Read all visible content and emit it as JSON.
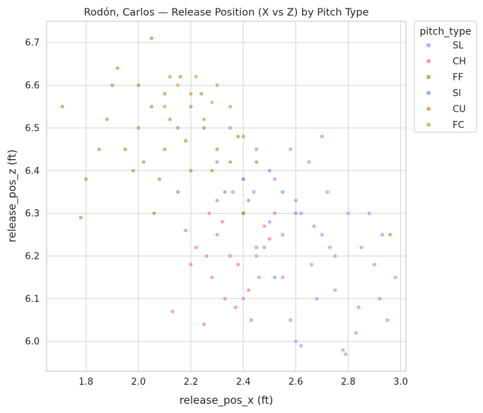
{
  "chart_data": {
    "type": "scatter",
    "title": "Rodón, Carlos — Release Position (X vs Z) by Pitch Type",
    "xlabel": "release_pos_x (ft)",
    "ylabel": "release_pos_z (ft)",
    "xlim": [
      1.65,
      3.02
    ],
    "ylim": [
      5.93,
      6.75
    ],
    "xticks": [
      "1.8",
      "2.0",
      "2.2",
      "2.4",
      "2.6",
      "2.8",
      "3.0"
    ],
    "yticks": [
      "6.0",
      "6.1",
      "6.2",
      "6.3",
      "6.4",
      "6.5",
      "6.6",
      "6.7"
    ],
    "grid": true,
    "legend": {
      "title": "pitch_type",
      "placement": "outside-top-right",
      "entries": [
        "SL",
        "CH",
        "FF",
        "Sl",
        "CU",
        "FC"
      ]
    },
    "series": [
      {
        "name": "SL",
        "color": "#c77cff",
        "points": [
          [
            2.62,
            6.3
          ],
          [
            2.7,
            6.25
          ],
          [
            2.75,
            6.2
          ],
          [
            2.55,
            6.15
          ],
          [
            2.8,
            6.3
          ],
          [
            2.85,
            6.22
          ],
          [
            2.9,
            6.18
          ],
          [
            2.68,
            6.1
          ],
          [
            2.72,
            6.35
          ],
          [
            2.58,
            6.05
          ],
          [
            2.6,
            6.0
          ],
          [
            2.78,
            5.98
          ],
          [
            2.83,
            6.02
          ],
          [
            2.92,
            6.1
          ],
          [
            2.95,
            6.05
          ],
          [
            2.5,
            6.28
          ],
          [
            2.45,
            6.2
          ],
          [
            2.52,
            6.38
          ],
          [
            2.65,
            6.42
          ],
          [
            2.7,
            6.48
          ],
          [
            2.58,
            6.45
          ],
          [
            2.88,
            6.3
          ],
          [
            2.93,
            6.25
          ],
          [
            2.98,
            6.15
          ],
          [
            2.75,
            6.12
          ],
          [
            2.66,
            6.18
          ],
          [
            2.55,
            6.25
          ],
          [
            2.62,
            5.99
          ],
          [
            2.79,
            5.97
          ],
          [
            2.84,
            6.08
          ],
          [
            2.4,
            6.1
          ],
          [
            2.44,
            6.35
          ],
          [
            2.6,
            6.33
          ],
          [
            2.67,
            6.27
          ],
          [
            2.73,
            6.22
          ]
        ]
      },
      {
        "name": "CH",
        "color": "#f0788c",
        "points": [
          [
            2.3,
            6.25
          ],
          [
            2.35,
            6.2
          ],
          [
            2.4,
            6.3
          ],
          [
            2.28,
            6.15
          ],
          [
            2.25,
            6.04
          ],
          [
            2.45,
            6.22
          ],
          [
            2.38,
            6.18
          ],
          [
            2.32,
            6.28
          ],
          [
            2.42,
            6.12
          ],
          [
            2.27,
            6.3
          ],
          [
            2.36,
            6.35
          ],
          [
            2.48,
            6.27
          ],
          [
            2.22,
            6.22
          ],
          [
            2.2,
            6.18
          ],
          [
            2.33,
            6.1
          ],
          [
            2.46,
            6.15
          ],
          [
            2.5,
            6.24
          ],
          [
            2.4,
            6.38
          ],
          [
            2.3,
            6.33
          ],
          [
            2.26,
            6.2
          ],
          [
            2.13,
            6.07
          ],
          [
            2.18,
            6.26
          ],
          [
            2.52,
            6.3
          ],
          [
            2.43,
            6.05
          ],
          [
            2.37,
            6.08
          ]
        ]
      },
      {
        "name": "FF",
        "color": "#7aab3b",
        "points": [
          [
            2.0,
            6.5
          ],
          [
            2.05,
            6.55
          ],
          [
            2.1,
            6.45
          ],
          [
            2.15,
            6.5
          ],
          [
            1.95,
            6.45
          ],
          [
            2.05,
            6.71
          ],
          [
            1.71,
            6.55
          ],
          [
            1.78,
            6.29
          ],
          [
            1.8,
            6.38
          ],
          [
            1.85,
            6.45
          ],
          [
            1.9,
            6.6
          ],
          [
            1.92,
            6.64
          ],
          [
            2.0,
            6.6
          ],
          [
            2.1,
            6.58
          ],
          [
            2.2,
            6.55
          ],
          [
            2.25,
            6.5
          ],
          [
            2.3,
            6.45
          ],
          [
            2.35,
            6.42
          ],
          [
            2.2,
            6.4
          ],
          [
            2.15,
            6.35
          ],
          [
            2.08,
            6.38
          ],
          [
            1.98,
            6.4
          ],
          [
            2.02,
            6.42
          ],
          [
            2.12,
            6.52
          ],
          [
            2.18,
            6.47
          ],
          [
            2.28,
            6.4
          ],
          [
            2.33,
            6.35
          ],
          [
            2.4,
            6.3
          ],
          [
            2.45,
            6.42
          ],
          [
            2.96,
            6.25
          ],
          [
            1.88,
            6.52
          ],
          [
            2.06,
            6.3
          ],
          [
            2.24,
            6.58
          ],
          [
            2.38,
            6.48
          ],
          [
            2.16,
            6.62
          ]
        ]
      },
      {
        "name": "Sl",
        "color": "#6c9fe0",
        "points": [
          [
            2.45,
            6.45
          ],
          [
            2.5,
            6.4
          ],
          [
            2.55,
            6.35
          ],
          [
            2.35,
            6.5
          ],
          [
            2.4,
            6.38
          ],
          [
            2.6,
            6.3
          ],
          [
            2.3,
            6.42
          ],
          [
            2.48,
            6.22
          ],
          [
            2.52,
            6.15
          ],
          [
            2.42,
            6.33
          ]
        ]
      },
      {
        "name": "CU",
        "color": "#d98c4a",
        "points": [
          [
            2.3,
            6.6
          ],
          [
            2.35,
            6.55
          ],
          [
            2.2,
            6.58
          ],
          [
            2.25,
            6.52
          ],
          [
            2.12,
            6.62
          ],
          [
            2.4,
            6.48
          ]
        ]
      },
      {
        "name": "FC",
        "color": "#c9a64a",
        "points": [
          [
            2.15,
            6.6
          ],
          [
            2.1,
            6.55
          ],
          [
            2.22,
            6.62
          ],
          [
            2.28,
            6.56
          ]
        ]
      }
    ]
  }
}
